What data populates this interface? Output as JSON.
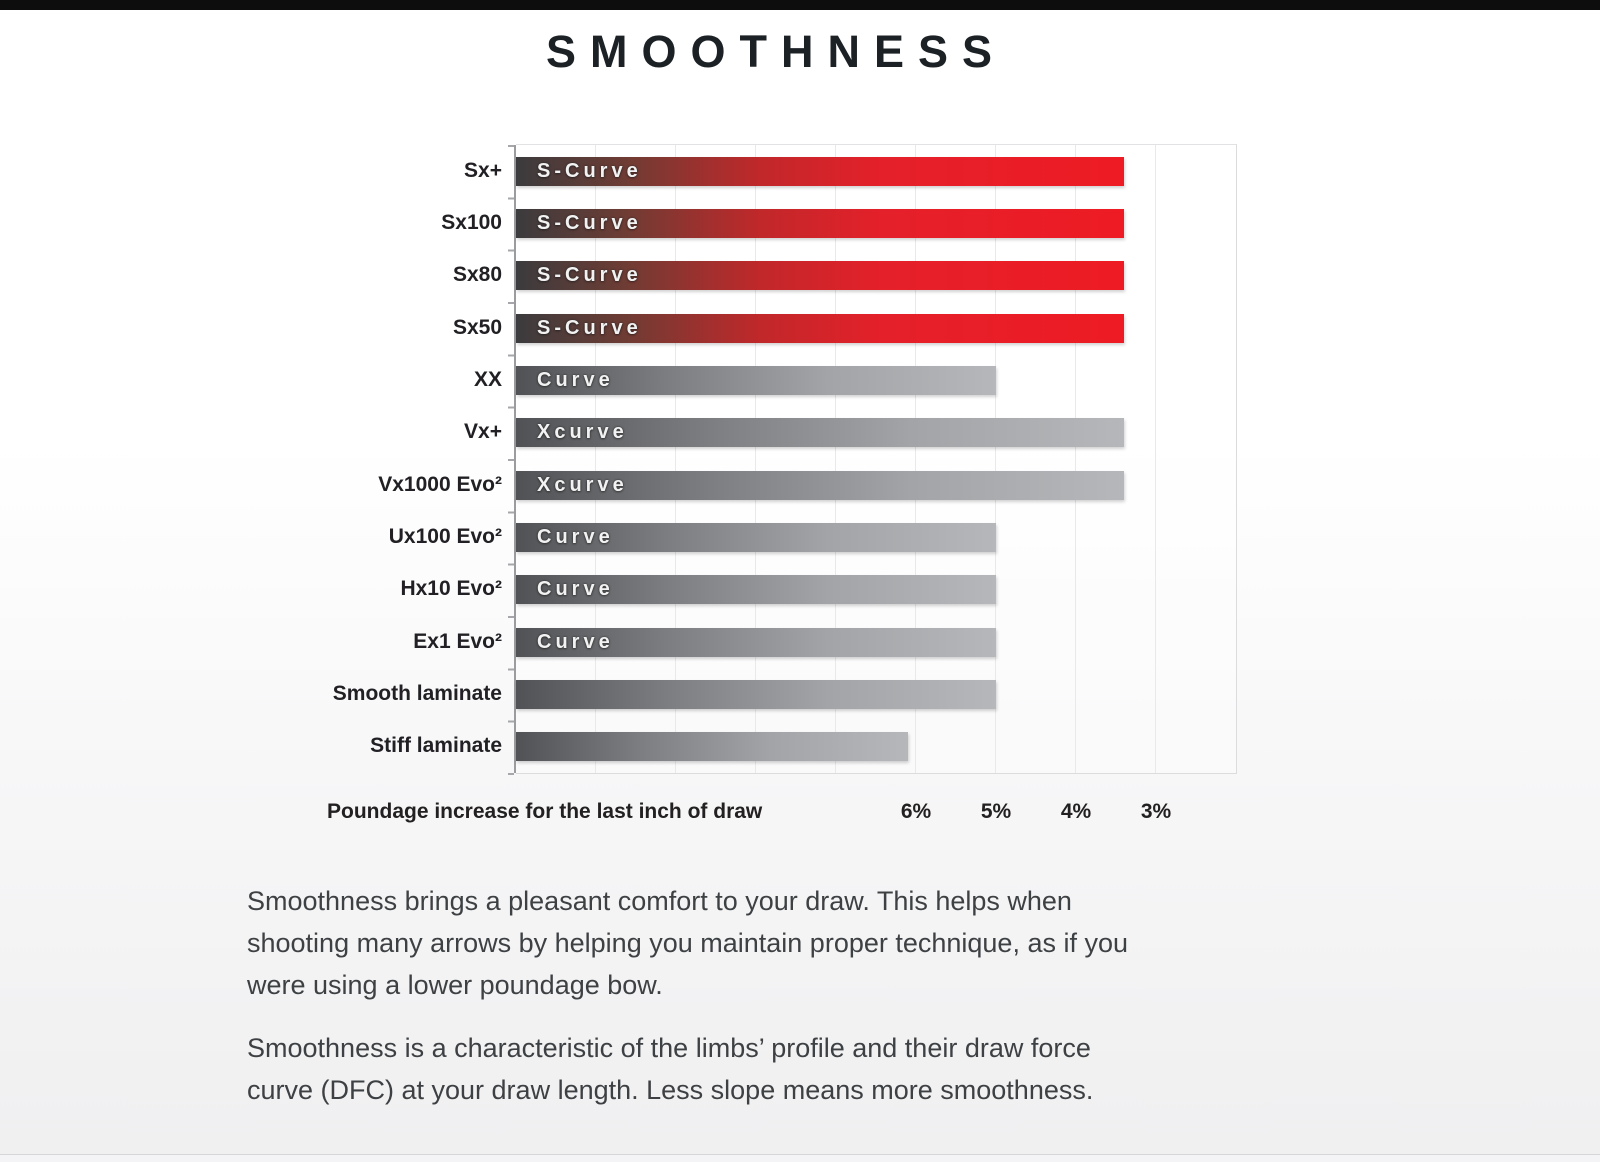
{
  "page": {
    "title": "SMOOTHNESS",
    "paragraphs": [
      {
        "lines": [
          "Smoothness brings a pleasant comfort to your draw. This helps when",
          "shooting many arrows by helping you maintain proper technique, as if you",
          "were using a lower poundage bow."
        ]
      },
      {
        "lines": [
          "Smoothness is a characteristic of the limbs’ profile and their draw force",
          "curve (DFC) at your draw length. Less slope means more smoothness."
        ]
      }
    ]
  },
  "chart_data": {
    "type": "bar",
    "orientation": "horizontal",
    "title": "SMOOTHNESS",
    "xlabel": "Poundage increase for the last inch of draw",
    "axis_reversed": true,
    "xlim": [
      11,
      2
    ],
    "grid": true,
    "x_ticks": [
      {
        "label": "6%",
        "value": 6
      },
      {
        "label": "5%",
        "value": 5
      },
      {
        "label": "4%",
        "value": 4
      },
      {
        "label": "3%",
        "value": 3
      }
    ],
    "rows": [
      {
        "label": "Sx+",
        "bar_text": "S-Curve",
        "value": 3.4,
        "color": "red"
      },
      {
        "label": "Sx100",
        "bar_text": "S-Curve",
        "value": 3.4,
        "color": "red"
      },
      {
        "label": "Sx80",
        "bar_text": "S-Curve",
        "value": 3.4,
        "color": "red"
      },
      {
        "label": "Sx50",
        "bar_text": "S-Curve",
        "value": 3.4,
        "color": "red"
      },
      {
        "label": "XX",
        "bar_text": "Curve",
        "value": 5.0,
        "color": "gray"
      },
      {
        "label": "Vx+",
        "bar_text": "Xcurve",
        "value": 3.4,
        "color": "gray"
      },
      {
        "label": "Vx1000 Evo²",
        "bar_text": "Xcurve",
        "value": 3.4,
        "color": "gray"
      },
      {
        "label": "Ux100 Evo²",
        "bar_text": "Curve",
        "value": 5.0,
        "color": "gray"
      },
      {
        "label": "Hx10 Evo²",
        "bar_text": "Curve",
        "value": 5.0,
        "color": "gray"
      },
      {
        "label": "Ex1 Evo²",
        "bar_text": "Curve",
        "value": 5.0,
        "color": "gray"
      },
      {
        "label": "Smooth laminate",
        "bar_text": "",
        "value": 5.0,
        "color": "gray"
      },
      {
        "label": "Stiff laminate",
        "bar_text": "",
        "value": 6.1,
        "color": "gray"
      }
    ],
    "colors": {
      "red_bar": "#ee1b24",
      "red_bar_dark_start": "#3b3b3d",
      "gray_bar": "#b5b7ba",
      "gray_bar_dark_start": "#515255",
      "title_text": "#1c2126",
      "axis_text": "#232022",
      "body_text": "#3e4144",
      "top_bar": "#0d0d0d"
    }
  }
}
